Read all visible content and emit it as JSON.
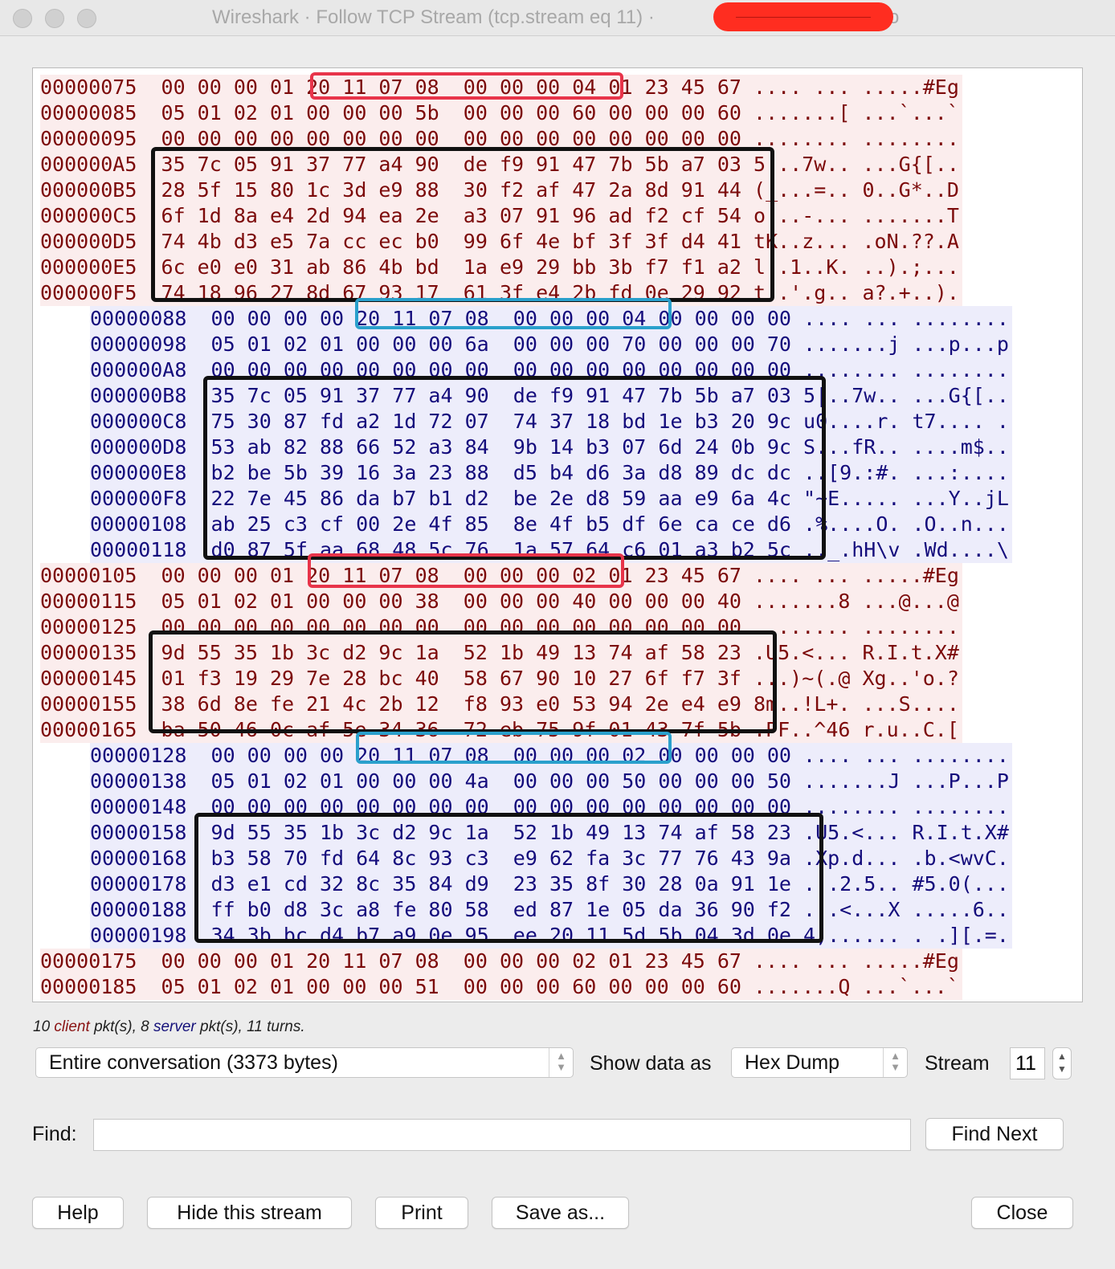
{
  "window": {
    "title": "Wireshark · Follow TCP Stream (tcp.stream eq 11) ·",
    "title_tail": "o"
  },
  "stream": {
    "rows": [
      {
        "dir": "client",
        "text": "00000075  00 00 00 01 20 11 07 08  00 00 00 04 01 23 45 67 .... ... .....#Eg"
      },
      {
        "dir": "client",
        "text": "00000085  05 01 02 01 00 00 00 5b  00 00 00 60 00 00 00 60 .......[ ...`...`"
      },
      {
        "dir": "client",
        "text": "00000095  00 00 00 00 00 00 00 00  00 00 00 00 00 00 00 00 ........ ........"
      },
      {
        "dir": "client",
        "text": "000000A5  35 7c 05 91 37 77 a4 90  de f9 91 47 7b 5b a7 03 5|..7w.. ...G{[.."
      },
      {
        "dir": "client",
        "text": "000000B5  28 5f 15 80 1c 3d e9 88  30 f2 af 47 2a 8d 91 44 (_...=.. 0..G*..D"
      },
      {
        "dir": "client",
        "text": "000000C5  6f 1d 8a e4 2d 94 ea 2e  a3 07 91 96 ad f2 cf 54 o...-... .......T"
      },
      {
        "dir": "client",
        "text": "000000D5  74 4b d3 e5 7a cc ec b0  99 6f 4e bf 3f 3f d4 41 tK..z... .oN.??.A"
      },
      {
        "dir": "client",
        "text": "000000E5  6c e0 e0 31 ab 86 4b bd  1a e9 29 bb 3b f7 f1 a2 l..1..K. ..).;..."
      },
      {
        "dir": "client",
        "text": "000000F5  74 18 96 27 8d 67 93 17  61 3f e4 2b fd 0e 29 92 t..'.g.. a?.+..)."
      },
      {
        "dir": "server",
        "text": "00000088  00 00 00 00 20 11 07 08  00 00 00 04 00 00 00 00 .... ... ........"
      },
      {
        "dir": "server",
        "text": "00000098  05 01 02 01 00 00 00 6a  00 00 00 70 00 00 00 70 .......j ...p...p"
      },
      {
        "dir": "server",
        "text": "000000A8  00 00 00 00 00 00 00 00  00 00 00 00 00 00 00 00 ........ ........"
      },
      {
        "dir": "server",
        "text": "000000B8  35 7c 05 91 37 77 a4 90  de f9 91 47 7b 5b a7 03 5|..7w.. ...G{[.."
      },
      {
        "dir": "server",
        "text": "000000C8  75 30 87 fd a2 1d 72 07  74 37 18 bd 1e b3 20 9c u0....r. t7.... ."
      },
      {
        "dir": "server",
        "text": "000000D8  53 ab 82 88 66 52 a3 84  9b 14 b3 07 6d 24 0b 9c S...fR.. ....m$.."
      },
      {
        "dir": "server",
        "text": "000000E8  b2 be 5b 39 16 3a 23 88  d5 b4 d6 3a d8 89 dc dc ..[9.:#. ...:...."
      },
      {
        "dir": "server",
        "text": "000000F8  22 7e 45 86 da b7 b1 d2  be 2e d8 59 aa e9 6a 4c \"~E..... ...Y..jL"
      },
      {
        "dir": "server",
        "text": "00000108  ab 25 c3 cf 00 2e 4f 85  8e 4f b5 df 6e ca ce d6 .%....O. .O..n..."
      },
      {
        "dir": "server",
        "text": "00000118  d0 87 5f aa 68 48 5c 76  1a 57 64 c6 01 a3 b2 5c .._.hH\\v .Wd....\\"
      },
      {
        "dir": "client",
        "text": "00000105  00 00 00 01 20 11 07 08  00 00 00 02 01 23 45 67 .... ... .....#Eg"
      },
      {
        "dir": "client",
        "text": "00000115  05 01 02 01 00 00 00 38  00 00 00 40 00 00 00 40 .......8 ...@...@"
      },
      {
        "dir": "client",
        "text": "00000125  00 00 00 00 00 00 00 00  00 00 00 00 00 00 00 00 ........ ........"
      },
      {
        "dir": "client",
        "text": "00000135  9d 55 35 1b 3c d2 9c 1a  52 1b 49 13 74 af 58 23 .U5.<... R.I.t.X#"
      },
      {
        "dir": "client",
        "text": "00000145  01 f3 19 29 7e 28 bc 40  58 67 90 10 27 6f f7 3f ...)~(.@ Xg..'o.?"
      },
      {
        "dir": "client",
        "text": "00000155  38 6d 8e fe 21 4c 2b 12  f8 93 e0 53 94 2e e4 e9 8m..!L+. ...S...."
      },
      {
        "dir": "client",
        "text": "00000165  ba 50 46 0c af 5e 34 36  72 eb 75 9f 01 43 7f 5b .PF..^46 r.u..C.["
      },
      {
        "dir": "server",
        "text": "00000128  00 00 00 00 20 11 07 08  00 00 00 02 00 00 00 00 .... ... ........"
      },
      {
        "dir": "server",
        "text": "00000138  05 01 02 01 00 00 00 4a  00 00 00 50 00 00 00 50 .......J ...P...P"
      },
      {
        "dir": "server",
        "text": "00000148  00 00 00 00 00 00 00 00  00 00 00 00 00 00 00 00 ........ ........"
      },
      {
        "dir": "server",
        "text": "00000158  9d 55 35 1b 3c d2 9c 1a  52 1b 49 13 74 af 58 23 .U5.<... R.I.t.X#"
      },
      {
        "dir": "server",
        "text": "00000168  b3 58 70 fd 64 8c 93 c3  e9 62 fa 3c 77 76 43 9a .Xp.d... .b.<wvC."
      },
      {
        "dir": "server",
        "text": "00000178  d3 e1 cd 32 8c 35 84 d9  23 35 8f 30 28 0a 91 1e ...2.5.. #5.0(..."
      },
      {
        "dir": "server",
        "text": "00000188  ff b0 d8 3c a8 fe 80 58  ed 87 1e 05 da 36 90 f2 ...<...X .....6.."
      },
      {
        "dir": "server",
        "text": "00000198  34 3b bc d4 b7 a9 0e 95  ee 20 11 5d 5b 04 3d 0e 4;...... . .][.=."
      },
      {
        "dir": "client",
        "text": "00000175  00 00 00 01 20 11 07 08  00 00 00 02 01 23 45 67 .... ... .....#Eg"
      },
      {
        "dir": "client",
        "text": "00000185  05 01 02 01 00 00 00 51  00 00 00 60 00 00 00 60 .......Q ...`...`"
      }
    ]
  },
  "stats": {
    "client_count": "10",
    "client_word": "client",
    "mid": "pkt(s), 8",
    "server_word": "server",
    "tail": "pkt(s), 11 turns."
  },
  "controls": {
    "conversation_select": "Entire conversation (3373 bytes)",
    "show_data_label": "Show data as",
    "show_data_select": "Hex Dump",
    "stream_label": "Stream",
    "stream_value": "11",
    "find_label": "Find:",
    "find_value": "",
    "find_next": "Find Next"
  },
  "buttons": {
    "help": "Help",
    "hide": "Hide this stream",
    "print": "Print",
    "save": "Save as...",
    "close": "Close"
  },
  "colors": {
    "client_text": "#7c0a0a",
    "client_bg": "#fbeded",
    "server_text": "#140c7c",
    "server_bg": "#ededfb",
    "highlight_red": "#e8344a",
    "highlight_blue": "#2aa0cc",
    "highlight_black": "#111111",
    "redaction": "#ff2d20"
  }
}
